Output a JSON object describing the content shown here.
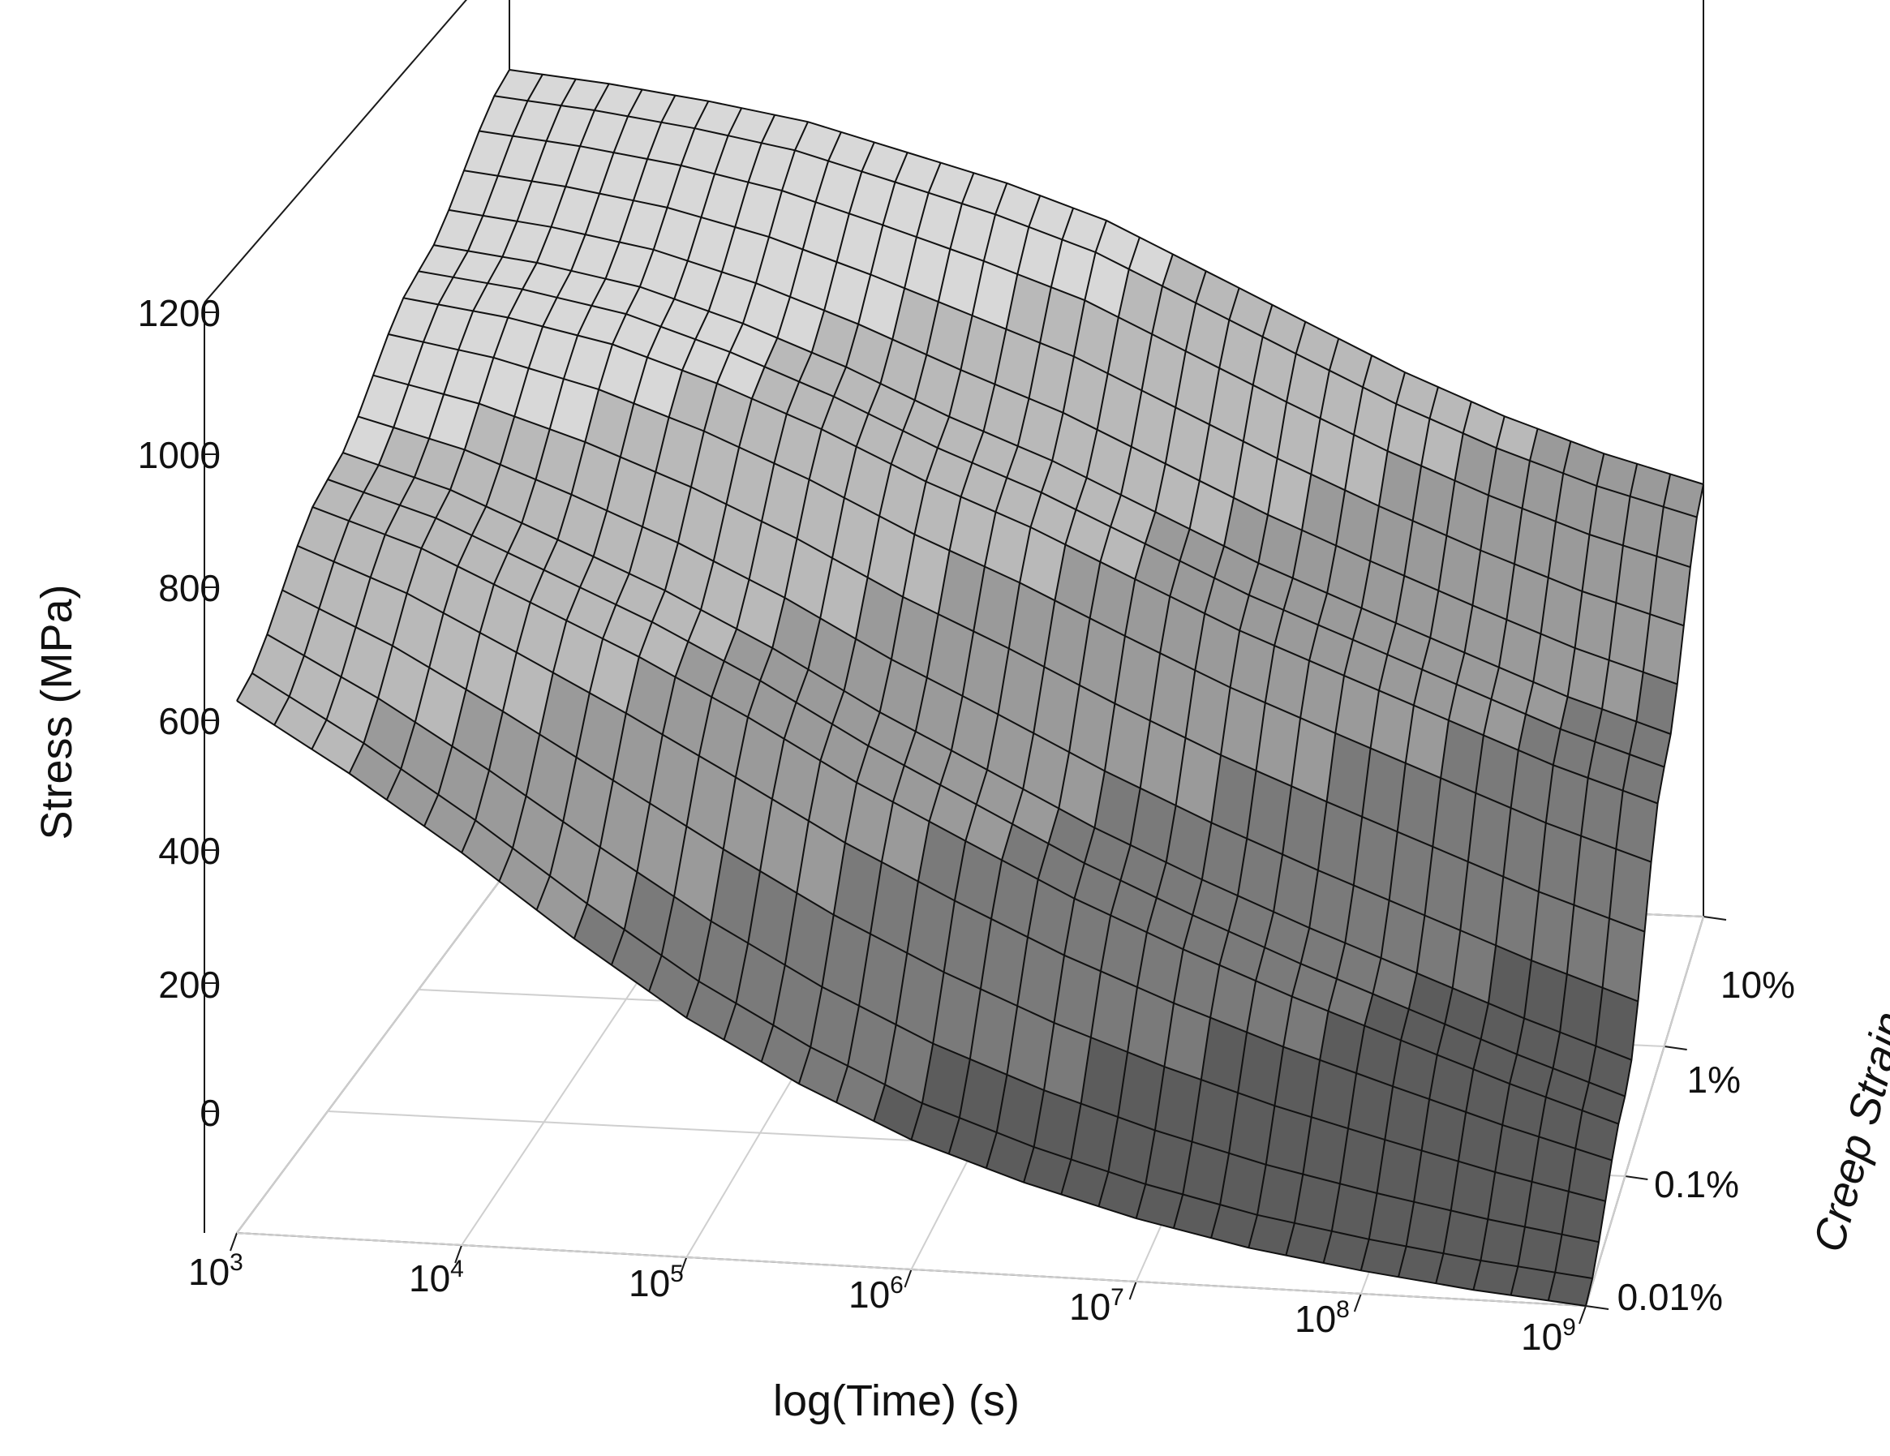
{
  "chart_data": {
    "type": "surface3d",
    "title": "",
    "xlabel": "log(Time) (s)",
    "ylabel": "Creep Strain",
    "zlabel": "Stress (MPa)",
    "x_axis": {
      "scale": "log",
      "range": [
        1000,
        1000000000
      ],
      "ticks": [
        {
          "base": "10",
          "exp": "3"
        },
        {
          "base": "10",
          "exp": "4"
        },
        {
          "base": "10",
          "exp": "5"
        },
        {
          "base": "10",
          "exp": "6"
        },
        {
          "base": "10",
          "exp": "7"
        },
        {
          "base": "10",
          "exp": "8"
        },
        {
          "base": "10",
          "exp": "9"
        }
      ]
    },
    "y_axis": {
      "scale": "log",
      "range": [
        0.0001,
        0.1
      ],
      "ticks": [
        "0.01%",
        "0.1%",
        "1%",
        "10%"
      ]
    },
    "z_axis": {
      "range": [
        0,
        1200
      ],
      "ticks": [
        "0",
        "200",
        "400",
        "600",
        "800",
        "1000",
        "1200"
      ]
    },
    "grid": true,
    "surface": {
      "x_log10": [
        3,
        3.5,
        4,
        4.5,
        5,
        5.5,
        6,
        6.5,
        7,
        7.5,
        8,
        8.5,
        9
      ],
      "strain_percent": [
        0.01,
        0.1,
        1,
        10
      ],
      "stress_MPa": [
        [
          800,
          700,
          590,
          470,
          360,
          270,
          195,
          140,
          95,
          60,
          35,
          15,
          0
        ],
        [
          950,
          900,
          830,
          760,
          680,
          590,
          510,
          430,
          360,
          295,
          235,
          175,
          120
        ],
        [
          1080,
          1060,
          1030,
          980,
          920,
          850,
          790,
          720,
          650,
          590,
          530,
          470,
          420
        ],
        [
          1200,
          1185,
          1165,
          1140,
          1100,
          1060,
          1010,
          940,
          870,
          800,
          740,
          690,
          650
        ]
      ],
      "colors": [
        "#5c5c5c",
        "#7a7a7a",
        "#9a9a9a",
        "#b9b9b9",
        "#d8d8d8"
      ]
    }
  }
}
